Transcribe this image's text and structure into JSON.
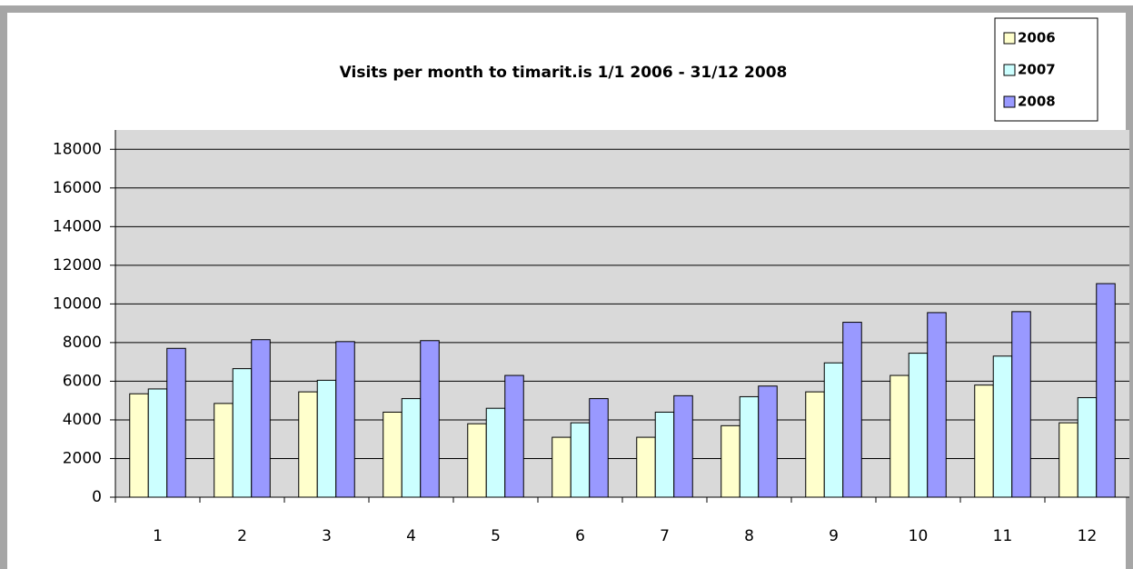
{
  "chart_data": {
    "type": "bar",
    "title": "Visits per month to timarit.is 1/1 2006 - 31/12 2008",
    "categories": [
      1,
      2,
      3,
      4,
      5,
      6,
      7,
      8,
      9,
      10,
      11,
      12
    ],
    "series": [
      {
        "name": "2006",
        "color": "#ffffcc",
        "values": [
          5350,
          4850,
          5450,
          4400,
          3800,
          3100,
          3100,
          3700,
          5450,
          6300,
          5800,
          3850
        ]
      },
      {
        "name": "2007",
        "color": "#ccffff",
        "values": [
          5600,
          6650,
          6050,
          5100,
          4600,
          3850,
          4400,
          5200,
          6950,
          7450,
          7300,
          5150
        ]
      },
      {
        "name": "2008",
        "color": "#9999ff",
        "values": [
          7700,
          8150,
          8050,
          8100,
          6300,
          5100,
          5250,
          5750,
          9050,
          9550,
          9600,
          11050
        ]
      }
    ],
    "ylim": [
      0,
      19000
    ],
    "yticks": [
      0,
      2000,
      4000,
      6000,
      8000,
      10000,
      12000,
      14000,
      16000,
      18000
    ],
    "grid": true,
    "legend": "top-right"
  }
}
